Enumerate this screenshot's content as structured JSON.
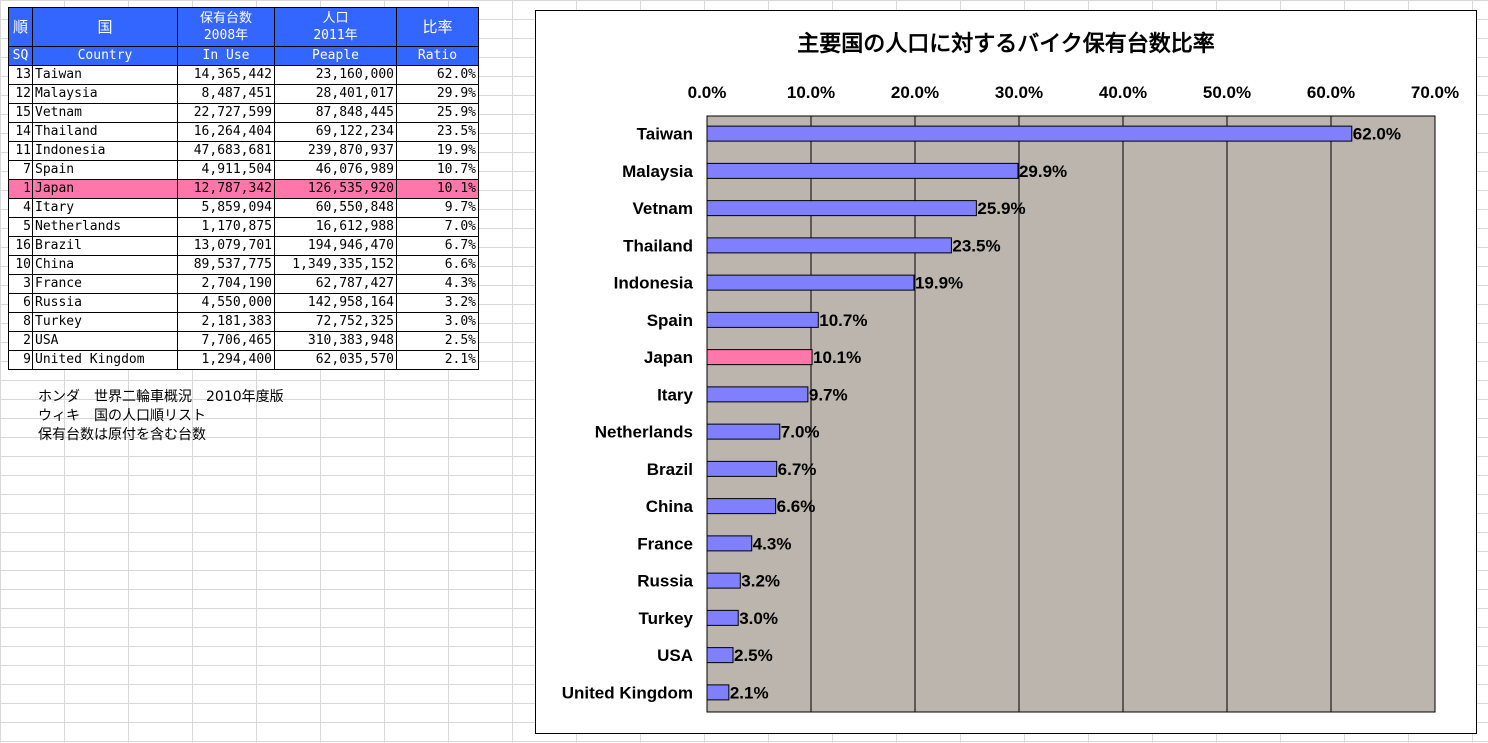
{
  "table": {
    "header_jp": [
      "順",
      "国",
      "保有台数\n2008年",
      "人口\n2011年",
      "比率"
    ],
    "header_en": [
      "SQ",
      "Country",
      "In Use",
      "Peaple",
      "Ratio"
    ],
    "highlight_color": "#ff77aa",
    "header_color": "#3366ff",
    "rows": [
      {
        "sq": "13",
        "country": "Taiwan",
        "in_use": "14,365,442",
        "population": "23,160,000",
        "ratio": "62.0%"
      },
      {
        "sq": "12",
        "country": "Malaysia",
        "in_use": "8,487,451",
        "population": "28,401,017",
        "ratio": "29.9%"
      },
      {
        "sq": "15",
        "country": "Vetnam",
        "in_use": "22,727,599",
        "population": "87,848,445",
        "ratio": "25.9%"
      },
      {
        "sq": "14",
        "country": "Thailand",
        "in_use": "16,264,404",
        "population": "69,122,234",
        "ratio": "23.5%"
      },
      {
        "sq": "11",
        "country": "Indonesia",
        "in_use": "47,683,681",
        "population": "239,870,937",
        "ratio": "19.9%"
      },
      {
        "sq": "7",
        "country": "Spain",
        "in_use": "4,911,504",
        "population": "46,076,989",
        "ratio": "10.7%"
      },
      {
        "sq": "1",
        "country": "Japan",
        "in_use": "12,787,342",
        "population": "126,535,920",
        "ratio": "10.1%",
        "highlight": true
      },
      {
        "sq": "4",
        "country": "Itary",
        "in_use": "5,859,094",
        "population": "60,550,848",
        "ratio": "9.7%"
      },
      {
        "sq": "5",
        "country": "Netherlands",
        "in_use": "1,170,875",
        "population": "16,612,988",
        "ratio": "7.0%"
      },
      {
        "sq": "16",
        "country": "Brazil",
        "in_use": "13,079,701",
        "population": "194,946,470",
        "ratio": "6.7%"
      },
      {
        "sq": "10",
        "country": "China",
        "in_use": "89,537,775",
        "population": "1,349,335,152",
        "ratio": "6.6%"
      },
      {
        "sq": "3",
        "country": "France",
        "in_use": "2,704,190",
        "population": "62,787,427",
        "ratio": "4.3%"
      },
      {
        "sq": "6",
        "country": "Russia",
        "in_use": "4,550,000",
        "population": "142,958,164",
        "ratio": "3.2%"
      },
      {
        "sq": "8",
        "country": "Turkey",
        "in_use": "2,181,383",
        "population": "72,752,325",
        "ratio": "3.0%"
      },
      {
        "sq": "2",
        "country": "USA",
        "in_use": "7,706,465",
        "population": "310,383,948",
        "ratio": "2.5%"
      },
      {
        "sq": "9",
        "country": "United Kingdom",
        "in_use": "1,294,400",
        "population": "62,035,570",
        "ratio": "2.1%"
      }
    ]
  },
  "notes": [
    "ホンダ　世界二輪車概況　2010年度版",
    "ウィキ　国の人口順リスト",
    "保有台数は原付を含む台数"
  ],
  "chart_data": {
    "type": "bar",
    "orientation": "horizontal",
    "title": "主要国の人口に対するバイク保有台数比率",
    "categories": [
      "Taiwan",
      "Malaysia",
      "Vetnam",
      "Thailand",
      "Indonesia",
      "Spain",
      "Japan",
      "Itary",
      "Netherlands",
      "Brazil",
      "China",
      "France",
      "Russia",
      "Turkey",
      "USA",
      "United Kingdom"
    ],
    "values": [
      62.0,
      29.9,
      25.9,
      23.5,
      19.9,
      10.7,
      10.1,
      9.7,
      7.0,
      6.7,
      6.6,
      4.3,
      3.2,
      3.0,
      2.5,
      2.1
    ],
    "data_labels": [
      "62.0%",
      "29.9%",
      "25.9%",
      "23.5%",
      "19.9%",
      "10.7%",
      "10.1%",
      "9.7%",
      "7.0%",
      "6.7%",
      "6.6%",
      "4.3%",
      "3.2%",
      "3.0%",
      "2.5%",
      "2.1%"
    ],
    "xlim": [
      0,
      70
    ],
    "x_ticks": [
      "0.0%",
      "10.0%",
      "20.0%",
      "30.0%",
      "40.0%",
      "50.0%",
      "60.0%",
      "70.0%"
    ],
    "x_axis_position": "top",
    "grid": true,
    "bar_color": "#8080ff",
    "highlight_category": "Japan",
    "highlight_color": "#ff77aa",
    "plot_background": "#bbb5ae",
    "xlabel": "",
    "ylabel": ""
  }
}
